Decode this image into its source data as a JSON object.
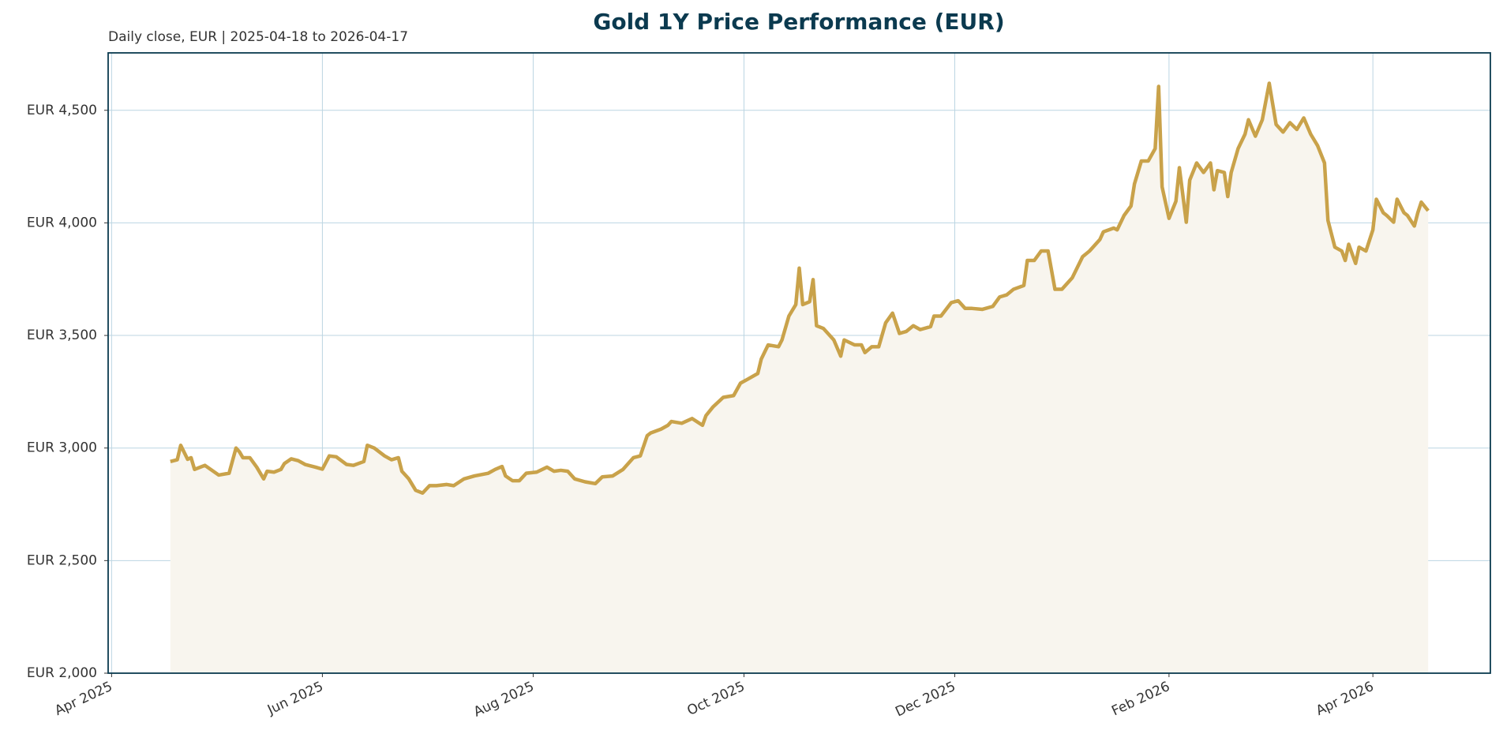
{
  "chart_data": {
    "type": "area-line",
    "title": "Gold 1Y Price Performance (EUR)",
    "subtitle": "Daily close, EUR | 2025-04-18 to 2026-04-17",
    "color": "#c9a24a",
    "area_color": "#f8f5ee",
    "grid": true,
    "xlim": [
      "2025-03-31",
      "2026-05-05"
    ],
    "xticks": [
      {
        "value": "2025-04-01",
        "label": "Apr 2025"
      },
      {
        "value": "2025-06-01",
        "label": "Jun 2025"
      },
      {
        "value": "2025-08-01",
        "label": "Aug 2025"
      },
      {
        "value": "2025-10-01",
        "label": "Oct 2025"
      },
      {
        "value": "2025-12-01",
        "label": "Dec 2025"
      },
      {
        "value": "2026-02-01",
        "label": "Feb 2026"
      },
      {
        "value": "2026-04-01",
        "label": "Apr 2026"
      }
    ],
    "ylim": [
      2000,
      4755
    ],
    "yticks": [
      {
        "value": 2000,
        "label": "EUR 2,000"
      },
      {
        "value": 2500,
        "label": "EUR 2,500"
      },
      {
        "value": 3000,
        "label": "EUR 3,000"
      },
      {
        "value": 3500,
        "label": "EUR 3,500"
      },
      {
        "value": 4000,
        "label": "EUR 4,000"
      },
      {
        "value": 4500,
        "label": "EUR 4,500"
      }
    ],
    "x": [
      "2025-04-18",
      "2025-04-20",
      "2025-04-21",
      "2025-04-23",
      "2025-04-24",
      "2025-04-25",
      "2025-04-28",
      "2025-05-02",
      "2025-05-05",
      "2025-05-07",
      "2025-05-08",
      "2025-05-09",
      "2025-05-11",
      "2025-05-13",
      "2025-05-15",
      "2025-05-16",
      "2025-05-18",
      "2025-05-20",
      "2025-05-21",
      "2025-05-23",
      "2025-05-25",
      "2025-05-27",
      "2025-05-30",
      "2025-06-01",
      "2025-06-03",
      "2025-06-05",
      "2025-06-08",
      "2025-06-10",
      "2025-06-13",
      "2025-06-14",
      "2025-06-16",
      "2025-06-19",
      "2025-06-21",
      "2025-06-23",
      "2025-06-24",
      "2025-06-26",
      "2025-06-28",
      "2025-06-30",
      "2025-07-02",
      "2025-07-04",
      "2025-07-07",
      "2025-07-09",
      "2025-07-12",
      "2025-07-15",
      "2025-07-19",
      "2025-07-21",
      "2025-07-23",
      "2025-07-24",
      "2025-07-26",
      "2025-07-28",
      "2025-07-30",
      "2025-08-02",
      "2025-08-05",
      "2025-08-07",
      "2025-08-09",
      "2025-08-11",
      "2025-08-13",
      "2025-08-16",
      "2025-08-19",
      "2025-08-21",
      "2025-08-24",
      "2025-08-27",
      "2025-08-30",
      "2025-09-01",
      "2025-09-03",
      "2025-09-04",
      "2025-09-07",
      "2025-09-09",
      "2025-09-10",
      "2025-09-13",
      "2025-09-16",
      "2025-09-19",
      "2025-09-20",
      "2025-09-22",
      "2025-09-25",
      "2025-09-28",
      "2025-09-30",
      "2025-10-02",
      "2025-10-05",
      "2025-10-06",
      "2025-10-08",
      "2025-10-11",
      "2025-10-12",
      "2025-10-14",
      "2025-10-16",
      "2025-10-17",
      "2025-10-18",
      "2025-10-20",
      "2025-10-21",
      "2025-10-22",
      "2025-10-24",
      "2025-10-27",
      "2025-10-29",
      "2025-10-30",
      "2025-11-02",
      "2025-11-04",
      "2025-11-05",
      "2025-11-07",
      "2025-11-09",
      "2025-11-11",
      "2025-11-13",
      "2025-11-15",
      "2025-11-17",
      "2025-11-19",
      "2025-11-21",
      "2025-11-24",
      "2025-11-25",
      "2025-11-27",
      "2025-11-30",
      "2025-12-02",
      "2025-12-04",
      "2025-12-06",
      "2025-12-09",
      "2025-12-12",
      "2025-12-14",
      "2025-12-16",
      "2025-12-18",
      "2025-12-21",
      "2025-12-22",
      "2025-12-24",
      "2025-12-26",
      "2025-12-28",
      "2025-12-30",
      "2026-01-01",
      "2026-01-04",
      "2026-01-07",
      "2026-01-09",
      "2026-01-12",
      "2026-01-13",
      "2026-01-16",
      "2026-01-17",
      "2026-01-19",
      "2026-01-21",
      "2026-01-22",
      "2026-01-24",
      "2026-01-26",
      "2026-01-28",
      "2026-01-29",
      "2026-01-30",
      "2026-02-01",
      "2026-02-03",
      "2026-02-04",
      "2026-02-06",
      "2026-02-07",
      "2026-02-09",
      "2026-02-11",
      "2026-02-13",
      "2026-02-14",
      "2026-02-15",
      "2026-02-17",
      "2026-02-18",
      "2026-02-19",
      "2026-02-21",
      "2026-02-23",
      "2026-02-24",
      "2026-02-26",
      "2026-02-28",
      "2026-03-02",
      "2026-03-04",
      "2026-03-06",
      "2026-03-08",
      "2026-03-10",
      "2026-03-12",
      "2026-03-14",
      "2026-03-16",
      "2026-03-18",
      "2026-03-19",
      "2026-03-21",
      "2026-03-23",
      "2026-03-24",
      "2026-03-25",
      "2026-03-27",
      "2026-03-28",
      "2026-03-30",
      "2026-04-01",
      "2026-04-02",
      "2026-04-04",
      "2026-04-05",
      "2026-04-07",
      "2026-04-08",
      "2026-04-10",
      "2026-04-11",
      "2026-04-13",
      "2026-04-14",
      "2026-04-15",
      "2026-04-17"
    ],
    "values": [
      2940,
      2948,
      3012,
      2950,
      2957,
      2905,
      2923,
      2880,
      2888,
      3000,
      2983,
      2957,
      2957,
      2915,
      2863,
      2897,
      2893,
      2905,
      2931,
      2952,
      2944,
      2927,
      2915,
      2906,
      2965,
      2961,
      2927,
      2923,
      2940,
      3012,
      3000,
      2965,
      2948,
      2957,
      2897,
      2863,
      2812,
      2800,
      2833,
      2833,
      2838,
      2833,
      2863,
      2876,
      2888,
      2905,
      2918,
      2876,
      2855,
      2855,
      2888,
      2893,
      2915,
      2897,
      2901,
      2897,
      2863,
      2850,
      2842,
      2872,
      2876,
      2905,
      2957,
      2965,
      3055,
      3067,
      3084,
      3101,
      3118,
      3110,
      3131,
      3101,
      3144,
      3182,
      3225,
      3233,
      3288,
      3305,
      3331,
      3395,
      3458,
      3450,
      3480,
      3586,
      3637,
      3799,
      3637,
      3650,
      3748,
      3543,
      3531,
      3480,
      3408,
      3480,
      3458,
      3458,
      3424,
      3450,
      3450,
      3556,
      3599,
      3509,
      3518,
      3543,
      3526,
      3539,
      3586,
      3586,
      3646,
      3654,
      3620,
      3620,
      3616,
      3629,
      3671,
      3680,
      3705,
      3722,
      3833,
      3833,
      3875,
      3875,
      3705,
      3705,
      3756,
      3850,
      3875,
      3926,
      3960,
      3977,
      3969,
      4033,
      4075,
      4173,
      4275,
      4275,
      4330,
      4606,
      4160,
      4020,
      4096,
      4245,
      4003,
      4190,
      4266,
      4224,
      4266,
      4147,
      4232,
      4224,
      4117,
      4224,
      4330,
      4394,
      4458,
      4385,
      4458,
      4620,
      4437,
      4403,
      4445,
      4415,
      4466,
      4394,
      4343,
      4266,
      4011,
      3892,
      3875,
      3833,
      3905,
      3820,
      3892,
      3875,
      3969,
      4105,
      4045,
      4033,
      4003,
      4105,
      4045,
      4033,
      3986,
      4045,
      4092,
      4054
    ]
  }
}
